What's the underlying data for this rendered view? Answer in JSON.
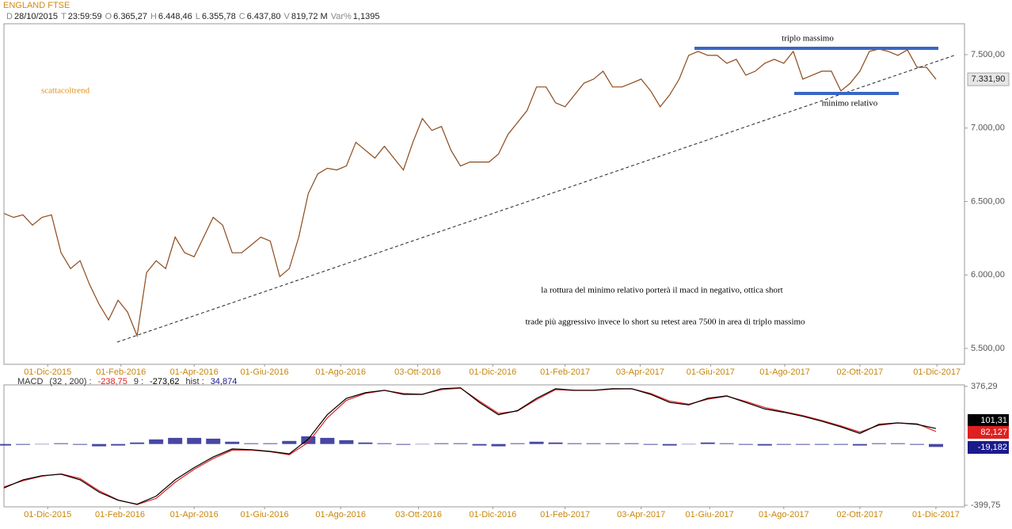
{
  "header": {
    "title": "ENGLAND FTSE",
    "fields": [
      {
        "key": "D",
        "value": "28/10/2015"
      },
      {
        "key": "T",
        "value": "23:59:59"
      },
      {
        "key": "O",
        "value": "6.365,27"
      },
      {
        "key": "H",
        "value": "6.448,46"
      },
      {
        "key": "L",
        "value": "6.355,78"
      },
      {
        "key": "C",
        "value": "6.437,80"
      },
      {
        "key": "V",
        "value": "819,72 M"
      },
      {
        "key": "Var%",
        "value": "1,1395"
      }
    ]
  },
  "chart_data": [
    {
      "type": "line",
      "annotations": [
        "scattacoltrend",
        "triplo massimo",
        "minimo relativo",
        "la rottura del minimo relativo porterà il macd in negativo, ottica short",
        "trade più aggressivo invece lo short su retest area 7500 in area di triplo massimo"
      ],
      "series": [
        {
          "color": "#8b4a1c",
          "last_label": "7.331,90",
          "values": [
            6419,
            6392,
            6409,
            6339,
            6392,
            6409,
            6151,
            6043,
            6097,
            5935,
            5801,
            5694,
            5828,
            5747,
            5586,
            6016,
            6097,
            6043,
            6258,
            6151,
            6124,
            6258,
            6392,
            6339,
            6151,
            6151,
            6204,
            6258,
            6231,
            5989,
            6043,
            6258,
            6554,
            6688,
            6726,
            6715,
            6742,
            6903,
            6849,
            6796,
            6876,
            6796,
            6715,
            6903,
            7065,
            6984,
            7011,
            6849,
            6742,
            6769,
            6769,
            6769,
            6823,
            6957,
            7038,
            7118,
            7280,
            7280,
            7172,
            7145,
            7226,
            7306,
            7333,
            7387,
            7280,
            7280,
            7306,
            7333,
            7253,
            7145,
            7226,
            7333,
            7495,
            7522,
            7495,
            7495,
            7441,
            7468,
            7360,
            7387,
            7441,
            7468,
            7441,
            7522,
            7333,
            7360,
            7387,
            7387,
            7253,
            7306,
            7387,
            7522,
            7538,
            7522,
            7495,
            7532,
            7414,
            7414,
            7331.9
          ]
        }
      ],
      "xlim": [
        0,
        101
      ],
      "xticks": [
        {
          "value": 4.6,
          "label": "01-Dic-2015"
        },
        {
          "value": 12.3,
          "label": "01-Feb-2016"
        },
        {
          "value": 20,
          "label": "01-Apr-2016"
        },
        {
          "value": 27.4,
          "label": "01-Giu-2016"
        },
        {
          "value": 35.4,
          "label": "01-Ago-2016"
        },
        {
          "value": 43.5,
          "label": "03-Ott-2016"
        },
        {
          "value": 51.4,
          "label": "01-Dic-2016"
        },
        {
          "value": 59,
          "label": "01-Feb-2017"
        },
        {
          "value": 66.9,
          "label": "03-Apr-2017"
        },
        {
          "value": 74.3,
          "label": "01-Giu-2017"
        },
        {
          "value": 82.1,
          "label": "01-Ago-2017"
        },
        {
          "value": 90,
          "label": "02-Ott-2017"
        },
        {
          "value": 98.1,
          "label": "01-Dic-2017"
        }
      ],
      "ylim": [
        5392,
        7710
      ],
      "yticks": [
        {
          "value": 5500,
          "label": "5.500,00"
        },
        {
          "value": 6000,
          "label": "6.000,00"
        },
        {
          "value": 6500,
          "label": "6.500,00"
        },
        {
          "value": 7000,
          "label": "7.000,00"
        },
        {
          "value": 7500,
          "label": "7.500,00"
        }
      ]
    },
    {
      "type": "line",
      "header": {
        "name": "MACD",
        "params": "(32 , 200) :",
        "macd": "-238,75",
        "signal_key": "9 :",
        "signal": "-273,62",
        "hist_key": "hist :",
        "hist": "34,874"
      },
      "series": [
        {
          "type": "bar",
          "color": "#1a1a8c",
          "last_label": "-19,182",
          "values": [
            -10,
            -5,
            0,
            5,
            -5,
            -15,
            -10,
            10,
            30,
            40,
            40,
            35,
            15,
            5,
            5,
            20,
            50,
            40,
            25,
            10,
            5,
            -5,
            0,
            5,
            5,
            -10,
            -15,
            5,
            15,
            10,
            5,
            5,
            5,
            5,
            -5,
            -10,
            0,
            10,
            5,
            -5,
            -10,
            -5,
            -5,
            -5,
            -5,
            -10,
            5,
            5,
            -5,
            -19.182
          ]
        },
        {
          "color": "#e02020",
          "last_label": "82,127",
          "values": [
            -280,
            -240,
            -210,
            -195,
            -225,
            -305,
            -365,
            -395,
            -355,
            -250,
            -165,
            -95,
            -40,
            -40,
            -50,
            -70,
            10,
            170,
            285,
            330,
            350,
            330,
            325,
            355,
            365,
            280,
            200,
            215,
            290,
            355,
            350,
            350,
            358,
            360,
            330,
            280,
            260,
            292,
            312,
            278,
            238,
            212,
            186,
            154,
            118,
            78,
            122,
            138,
            132,
            82.127
          ]
        },
        {
          "color": "#000000",
          "last_label": "101,31",
          "values": [
            -287,
            -234,
            -207,
            -197,
            -234,
            -314,
            -367,
            -393,
            -340,
            -234,
            -154,
            -85,
            -32,
            -37,
            -48,
            -64,
            32,
            191,
            298,
            335,
            351,
            324,
            324,
            361,
            367,
            271,
            191,
            218,
            298,
            361,
            351,
            351,
            361,
            361,
            324,
            271,
            255,
            298,
            314,
            271,
            229,
            207,
            181,
            149,
            112,
            69,
            128,
            138,
            128,
            101.31
          ]
        }
      ],
      "xlim": [
        0,
        50.5
      ],
      "xticks": [
        {
          "value": 2.3,
          "label": "01-Dic-2015"
        },
        {
          "value": 6.1,
          "label": "01-Feb-2016"
        },
        {
          "value": 10,
          "label": "01-Apr-2016"
        },
        {
          "value": 13.7,
          "label": "01-Giu-2016"
        },
        {
          "value": 17.7,
          "label": "01-Ago-2016"
        },
        {
          "value": 21.8,
          "label": "03-Ott-2016"
        },
        {
          "value": 25.7,
          "label": "01-Dic-2016"
        },
        {
          "value": 29.5,
          "label": "01-Feb-2017"
        },
        {
          "value": 33.5,
          "label": "03-Apr-2017"
        },
        {
          "value": 37.1,
          "label": "01-Giu-2017"
        },
        {
          "value": 41,
          "label": "01-Ago-2017"
        },
        {
          "value": 45,
          "label": "02-Ott-2017"
        },
        {
          "value": 49,
          "label": "01-Dic-2017"
        }
      ],
      "ylim": [
        -410,
        386
      ],
      "yticks": [
        {
          "value": -399.75,
          "label": "-399,75"
        },
        {
          "value": 376.29,
          "label": "376,29"
        }
      ]
    }
  ]
}
